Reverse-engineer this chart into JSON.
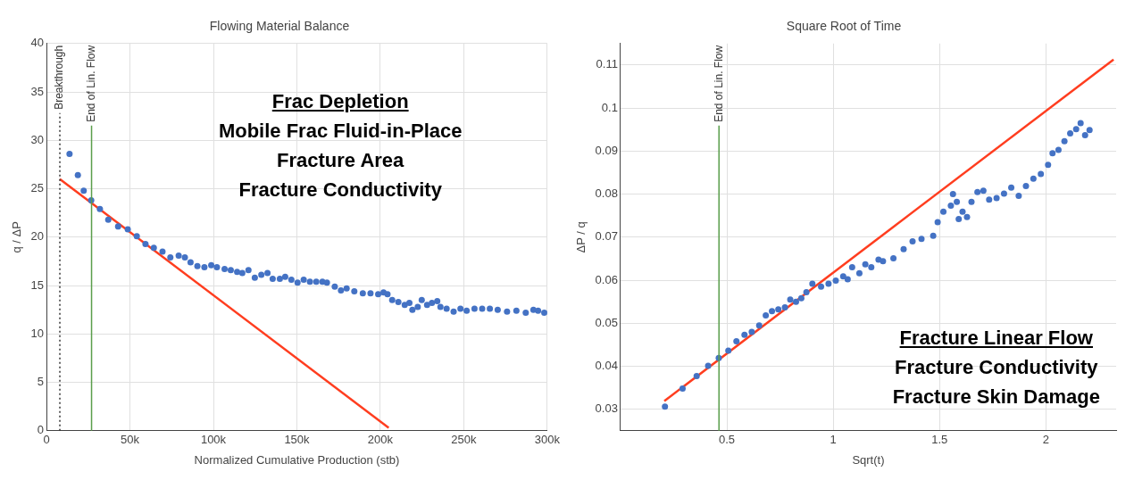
{
  "chart_data": [
    {
      "type": "scatter",
      "title": "Flowing Material Balance",
      "xlabel": "Normalized Cumulative Production (stb)",
      "ylabel": "q / ΔP",
      "annotations": [
        "Frac Depletion",
        "Mobile Frac Fluid-in-Place",
        "Fracture Area",
        "Fracture Conductivity"
      ],
      "xlim": [
        0,
        300000
      ],
      "ylim": [
        0,
        40
      ],
      "xticks": [
        0,
        {
          "value": 50000,
          "label": "50k"
        },
        {
          "value": 100000,
          "label": "100k"
        },
        {
          "value": 150000,
          "label": "150k"
        },
        {
          "value": 200000,
          "label": "200k"
        },
        {
          "value": 250000,
          "label": "250k"
        },
        {
          "value": 300000,
          "label": "300k"
        }
      ],
      "yticks": [
        0,
        5,
        10,
        15,
        20,
        25,
        30,
        35,
        40
      ],
      "grid": true,
      "ref_lines": [
        {
          "axis": "x",
          "value": 8000,
          "label": "Breakthrough",
          "color": "#333333",
          "line_style": "dotted"
        },
        {
          "axis": "x",
          "value": 27000,
          "label": "End of Lin. Flow",
          "color": "#5a9e4b",
          "line_style": "solid"
        }
      ],
      "series": [
        {
          "type": "scatter",
          "marker": "circle",
          "color": "#4472c4",
          "x": [
            13800,
            18800,
            22300,
            26800,
            32000,
            37000,
            42900,
            48700,
            54100,
            59300,
            64300,
            69500,
            74200,
            79200,
            82900,
            86300,
            90400,
            94600,
            98700,
            102100,
            106700,
            110400,
            114200,
            117300,
            121000,
            124800,
            128700,
            132400,
            135500,
            139800,
            143000,
            146700,
            150400,
            154100,
            157800,
            161600,
            165300,
            168000,
            172700,
            176400,
            179800,
            184400,
            189500,
            194100,
            198700,
            201900,
            204300,
            207100,
            210800,
            214600,
            217400,
            219200,
            222400,
            224800,
            228000,
            230900,
            234100,
            236000,
            239700,
            243900,
            248000,
            251700,
            256400,
            261000,
            265600,
            270300,
            275900,
            281500,
            287100,
            291700,
            294500,
            298200
          ],
          "values": [
            28.6,
            26.4,
            24.8,
            23.8,
            22.9,
            21.8,
            21.1,
            20.8,
            20.1,
            19.3,
            18.9,
            18.5,
            17.9,
            18.1,
            17.9,
            17.4,
            17.0,
            16.9,
            17.1,
            16.9,
            16.7,
            16.6,
            16.4,
            16.3,
            16.6,
            15.8,
            16.1,
            16.3,
            15.7,
            15.7,
            15.9,
            15.6,
            15.3,
            15.6,
            15.4,
            15.4,
            15.4,
            15.3,
            14.9,
            14.5,
            14.7,
            14.4,
            14.2,
            14.2,
            14.1,
            14.3,
            14.1,
            13.5,
            13.3,
            13.0,
            13.2,
            12.5,
            12.8,
            13.5,
            13.0,
            13.2,
            13.4,
            12.8,
            12.6,
            12.3,
            12.6,
            12.4,
            12.6,
            12.6,
            12.6,
            12.5,
            12.3,
            12.4,
            12.2,
            12.5,
            12.4,
            12.2
          ]
        },
        {
          "type": "line",
          "marker": "none",
          "color": "#ff3d1f",
          "x": [
            8000,
            205000
          ],
          "values": [
            26,
            0.3
          ]
        }
      ]
    },
    {
      "type": "scatter",
      "title": "Square Root of Time",
      "xlabel": "Sqrt(t)",
      "ylabel": "ΔP / q",
      "annotations": [
        "Fracture Linear Flow",
        "Fracture Conductivity",
        "Fracture Skin Damage"
      ],
      "xlim": [
        0,
        2.33
      ],
      "ylim": [
        0.025,
        0.115
      ],
      "xticks": [
        0.5,
        1,
        1.5,
        2
      ],
      "yticks": [
        0.03,
        0.04,
        0.05,
        0.06,
        0.07,
        0.08,
        0.09,
        0.1,
        0.11
      ],
      "grid": true,
      "ref_lines": [
        {
          "axis": "x",
          "value": 0.463,
          "label": "End of Lin. Flow",
          "color": "#5a9e4b",
          "line_style": "solid"
        }
      ],
      "series": [
        {
          "type": "scatter",
          "marker": "circle",
          "color": "#4472c4",
          "x": [
            0.209,
            0.292,
            0.358,
            0.412,
            0.462,
            0.507,
            0.545,
            0.583,
            0.617,
            0.652,
            0.683,
            0.712,
            0.742,
            0.773,
            0.798,
            0.825,
            0.85,
            0.874,
            0.902,
            0.943,
            0.978,
            1.012,
            1.047,
            1.068,
            1.089,
            1.123,
            1.151,
            1.179,
            1.213,
            1.234,
            1.283,
            1.331,
            1.373,
            1.415,
            1.47,
            1.491,
            1.518,
            1.553,
            1.563,
            1.581,
            1.59,
            1.608,
            1.629,
            1.65,
            1.678,
            1.706,
            1.733,
            1.768,
            1.803,
            1.837,
            1.872,
            1.906,
            1.941,
            1.976,
            2.01,
            2.031,
            2.059,
            2.087,
            2.114,
            2.142,
            2.163,
            2.184,
            2.205
          ],
          "values": [
            0.0306,
            0.0348,
            0.0377,
            0.0401,
            0.0419,
            0.0436,
            0.0458,
            0.0473,
            0.048,
            0.0495,
            0.0518,
            0.0528,
            0.0532,
            0.0537,
            0.0555,
            0.055,
            0.0558,
            0.0572,
            0.0592,
            0.0585,
            0.0592,
            0.0599,
            0.0609,
            0.0602,
            0.063,
            0.0616,
            0.0637,
            0.063,
            0.0648,
            0.0644,
            0.0651,
            0.0672,
            0.069,
            0.0696,
            0.0703,
            0.0735,
            0.0759,
            0.0773,
            0.08,
            0.0782,
            0.0742,
            0.0759,
            0.0747,
            0.0782,
            0.0805,
            0.0808,
            0.0787,
            0.0791,
            0.0801,
            0.0815,
            0.0796,
            0.0819,
            0.0836,
            0.0847,
            0.0868,
            0.0895,
            0.0903,
            0.0923,
            0.0941,
            0.0951,
            0.0965,
            0.0937,
            0.0949
          ]
        },
        {
          "type": "line",
          "marker": "none",
          "color": "#ff3d1f",
          "x": [
            0.206,
            2.318
          ],
          "values": [
            0.0319,
            0.1113
          ]
        }
      ]
    }
  ]
}
